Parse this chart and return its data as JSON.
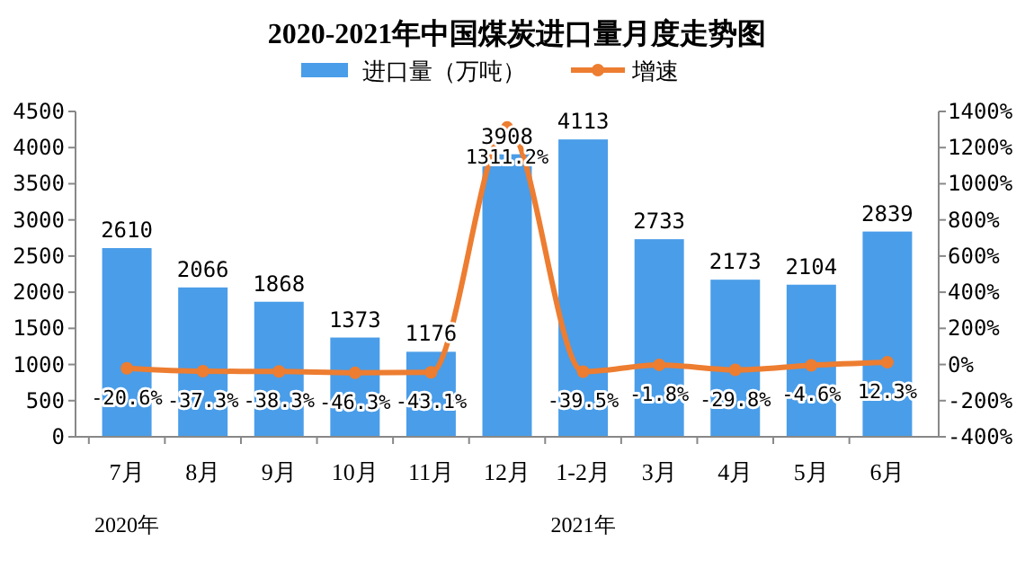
{
  "chart_data": {
    "type": "bar",
    "title": "2020-2021年中国煤炭进口量月度走势图",
    "categories": [
      "7月",
      "8月",
      "9月",
      "10月",
      "11月",
      "12月",
      "1-2月",
      "3月",
      "4月",
      "5月",
      "6月"
    ],
    "series": [
      {
        "name": "进口量（万吨）",
        "color": "#4a9de8",
        "values": [
          2610,
          2066,
          1868,
          1373,
          1176,
          3908,
          4113,
          2733,
          2173,
          2104,
          2839
        ]
      },
      {
        "name": "增速",
        "type": "line",
        "axis": "y2",
        "color": "#ed7d31",
        "marker": "circle",
        "values": [
          -20.6,
          -37.3,
          -38.3,
          -46.3,
          -43.1,
          1311.2,
          -39.5,
          -1.8,
          -29.8,
          -4.6,
          12.3
        ],
        "value_labels": [
          "-20.6%",
          "-37.3%",
          "-38.3%",
          "-46.3%",
          "-43.1%",
          "1311.2%",
          "-39.5%",
          "-1.8%",
          "-29.8%",
          "-4.6%",
          "12.3%"
        ]
      }
    ],
    "ylim": [
      0,
      4500
    ],
    "yticks": [
      0,
      500,
      1000,
      1500,
      2000,
      2500,
      3000,
      3500,
      4000,
      4500
    ],
    "y2lim": [
      -400,
      1400
    ],
    "y2ticks": [
      {
        "value": -400,
        "label": "-400%"
      },
      {
        "value": -200,
        "label": "-200%"
      },
      {
        "value": 0,
        "label": "0%"
      },
      {
        "value": 200,
        "label": "200%"
      },
      {
        "value": 400,
        "label": "400%"
      },
      {
        "value": 600,
        "label": "600%"
      },
      {
        "value": 800,
        "label": "800%"
      },
      {
        "value": 1000,
        "label": "1000%"
      },
      {
        "value": 1200,
        "label": "1200%"
      },
      {
        "value": 1400,
        "label": "1400%"
      }
    ],
    "data_labels": true,
    "legend": "top",
    "grid": false,
    "annotations": [
      "2020年",
      "2021年"
    ]
  }
}
